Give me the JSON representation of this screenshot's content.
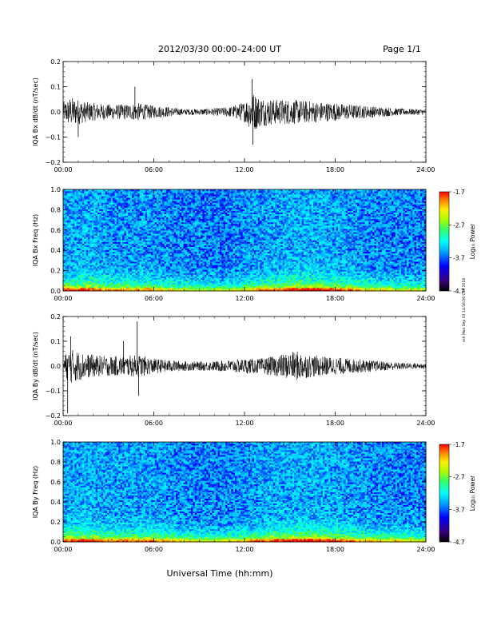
{
  "header": {
    "title": "2012/03/30  00:00–24:00 UT",
    "page": "Page 1/1"
  },
  "side_stamp": "ssh Mon Sep 03 14:56:56 CST 2018",
  "xaxis": {
    "label": "Universal Time (hh:mm)",
    "ticks": [
      "00:00",
      "06:00",
      "12:00",
      "18:00",
      "24:00"
    ],
    "range_hours": [
      0,
      24
    ]
  },
  "colors": {
    "trace": "#000000",
    "colormap": [
      "#000000",
      "#3a007a",
      "#0000ff",
      "#00aaff",
      "#00ffff",
      "#33ff66",
      "#aaff00",
      "#ffee00",
      "#ff8800",
      "#ff0000"
    ]
  },
  "chart_data": [
    {
      "type": "line",
      "ylabel": "IQA Bx dB/dt (nT/sec)",
      "ylim": [
        -0.2,
        0.2
      ],
      "yticks": [
        "0.2",
        "0.1",
        "0.0",
        "−0.1",
        "−0.2"
      ],
      "envelope": {
        "hours": [
          0,
          0.5,
          1,
          1.5,
          2,
          3,
          4,
          5,
          6,
          7,
          8,
          9,
          10,
          11,
          12,
          12.5,
          13,
          14,
          15,
          16,
          17,
          18,
          19,
          20,
          21,
          22,
          23,
          24
        ],
        "amplitude": [
          0.035,
          0.06,
          0.05,
          0.04,
          0.035,
          0.03,
          0.03,
          0.035,
          0.025,
          0.02,
          0.012,
          0.012,
          0.015,
          0.02,
          0.04,
          0.08,
          0.06,
          0.05,
          0.05,
          0.045,
          0.04,
          0.035,
          0.03,
          0.025,
          0.02,
          0.015,
          0.012,
          0.012
        ]
      },
      "spikes": [
        {
          "hour": 1.0,
          "value": -0.1
        },
        {
          "hour": 4.75,
          "value": 0.1
        },
        {
          "hour": 12.5,
          "value": 0.13
        },
        {
          "hour": 12.55,
          "value": -0.13
        }
      ]
    },
    {
      "type": "heatmap",
      "ylabel": "IQA Bx Freq (Hz)",
      "ylim": [
        0.0,
        1.0
      ],
      "yticks": [
        "1.0",
        "0.8",
        "0.6",
        "0.4",
        "0.2",
        "0.0"
      ],
      "colorbar": {
        "label": "Log₁₀ Power",
        "range": [
          -4.7,
          -1.7
        ],
        "ticks": [
          "-1.7",
          "-2.7",
          "-3.7",
          "-4.7"
        ]
      },
      "activity_by_hour": [
        0.8,
        0.9,
        0.7,
        0.6,
        0.6,
        0.7,
        0.5,
        0.4,
        0.35,
        0.3,
        0.3,
        0.4,
        0.55,
        0.7,
        0.85,
        0.95,
        0.95,
        0.9,
        0.75,
        0.6,
        0.5,
        0.45,
        0.4,
        0.35
      ]
    },
    {
      "type": "line",
      "ylabel": "IQA By dB/dt (nT/sec)",
      "ylim": [
        -0.2,
        0.2
      ],
      "yticks": [
        "0.2",
        "0.1",
        "0.0",
        "−0.1",
        "−0.2"
      ],
      "envelope": {
        "hours": [
          0,
          0.5,
          1,
          1.5,
          2,
          3,
          4,
          5,
          6,
          7,
          8,
          9,
          10,
          11,
          12,
          13,
          14,
          15,
          15.5,
          16,
          17,
          18,
          19,
          20,
          21,
          22,
          23,
          24
        ],
        "amplitude": [
          0.04,
          0.07,
          0.06,
          0.05,
          0.045,
          0.04,
          0.04,
          0.045,
          0.03,
          0.025,
          0.02,
          0.018,
          0.02,
          0.025,
          0.03,
          0.03,
          0.04,
          0.055,
          0.06,
          0.05,
          0.04,
          0.035,
          0.03,
          0.025,
          0.02,
          0.015,
          0.012,
          0.012
        ]
      },
      "spikes": [
        {
          "hour": 0.3,
          "value": -0.19
        },
        {
          "hour": 0.5,
          "value": 0.12
        },
        {
          "hour": 4.0,
          "value": 0.1
        },
        {
          "hour": 4.9,
          "value": 0.18
        },
        {
          "hour": 5.0,
          "value": -0.12
        }
      ]
    },
    {
      "type": "heatmap",
      "ylabel": "IQA By Freq (Hz)",
      "ylim": [
        0.0,
        1.0
      ],
      "yticks": [
        "1.0",
        "0.8",
        "0.6",
        "0.4",
        "0.2",
        "0.0"
      ],
      "colorbar": {
        "label": "Log₁₀ Power",
        "range": [
          -4.7,
          -1.7
        ],
        "ticks": [
          "-1.7",
          "-2.7",
          "-3.7",
          "-4.7"
        ]
      },
      "activity_by_hour": [
        0.85,
        0.95,
        0.8,
        0.75,
        0.75,
        0.8,
        0.65,
        0.5,
        0.45,
        0.4,
        0.4,
        0.5,
        0.65,
        0.8,
        0.9,
        0.95,
        0.95,
        0.9,
        0.8,
        0.65,
        0.55,
        0.5,
        0.45,
        0.4
      ]
    }
  ]
}
